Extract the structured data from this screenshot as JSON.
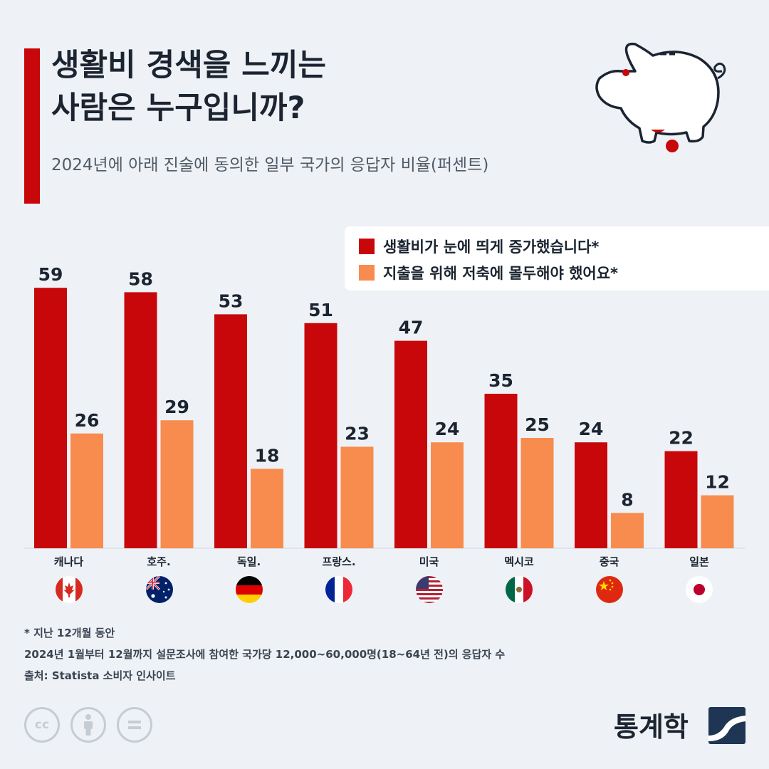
{
  "header": {
    "title_line1": "생활비 경색을 느끼는",
    "title_line2": "사람은 누구입니까?",
    "subtitle": "2024년에 아래 진술에 동의한 일부 국가의 응답자 비율(퍼센트)"
  },
  "chart_data": {
    "type": "bar",
    "categories": [
      "캐나다",
      "호주.",
      "독일.",
      "프랑스.",
      "미국",
      "멕시코",
      "중국",
      "일본"
    ],
    "series": [
      {
        "name": "생활비가 눈에 띄게 증가했습니다*",
        "color": "#c8070b",
        "values": [
          59,
          58,
          53,
          51,
          47,
          35,
          24,
          22
        ]
      },
      {
        "name": "지출을 위해 저축에 몰두해야 했어요*",
        "color": "#f78c4e",
        "values": [
          26,
          29,
          18,
          23,
          24,
          25,
          8,
          12
        ]
      }
    ],
    "ylim": [
      0,
      70
    ],
    "grid": false,
    "legend_position": "top-right",
    "data_labels": true
  },
  "flags": [
    "canada-flag-icon",
    "australia-flag-icon",
    "germany-flag-icon",
    "france-flag-icon",
    "usa-flag-icon",
    "mexico-flag-icon",
    "china-flag-icon",
    "japan-flag-icon"
  ],
  "footer": {
    "note1": "* 지난 12개월 동안",
    "note2": "2024년 1월부터 12월까지 설문조사에 참여한 국가당 12,000~60,000명(18~64년 전)의 응답자 수",
    "source": "출처: Statista 소비자 인사이트",
    "brand": "통계학",
    "license_icons": [
      "cc-icon",
      "attribution-icon",
      "no-derivatives-icon"
    ],
    "cc_text": "cc"
  }
}
